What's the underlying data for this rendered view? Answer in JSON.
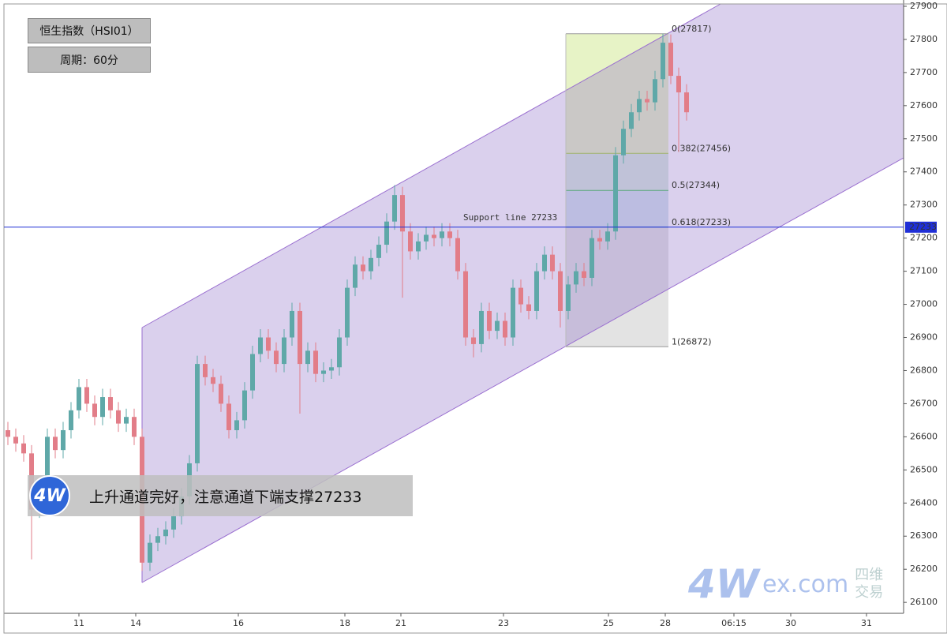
{
  "chart_data": {
    "type": "candlestick",
    "title": "恒生指数（HSI01）",
    "subtitle": "周期：60分",
    "annotation": "上升通道完好，注意通道下端支撑27233",
    "logo": "4W",
    "watermark": {
      "brand": "ex.com",
      "cn1": "四维",
      "cn2": "交易"
    },
    "up_color": "#5fa8a8",
    "down_color": "#e27d88",
    "xlim": [
      0,
      114
    ],
    "ylim": [
      26067,
      27919
    ],
    "yticks": [
      26100,
      26200,
      26300,
      26400,
      26500,
      26600,
      26700,
      26800,
      26900,
      27000,
      27100,
      27200,
      27300,
      27400,
      27500,
      27600,
      27700,
      27800,
      27900
    ],
    "xticks": [
      {
        "value": 9.5,
        "label": "11"
      },
      {
        "value": 16.7,
        "label": "14"
      },
      {
        "value": 29.7,
        "label": "16"
      },
      {
        "value": 43.2,
        "label": "18"
      },
      {
        "value": 50.3,
        "label": "21"
      },
      {
        "value": 63.3,
        "label": "23"
      },
      {
        "value": 76.6,
        "label": "25"
      },
      {
        "value": 83.8,
        "label": "28"
      },
      {
        "value": 92.5,
        "label": "06:15"
      },
      {
        "value": 99.7,
        "label": "30"
      },
      {
        "value": 109.3,
        "label": "31"
      }
    ],
    "x": [
      0,
      1,
      2,
      3,
      4,
      5,
      6,
      7,
      8,
      9,
      10,
      11,
      12,
      13,
      14,
      15,
      16,
      17,
      18,
      19,
      20,
      21,
      22,
      23,
      24,
      25,
      26,
      27,
      28,
      29,
      30,
      31,
      32,
      33,
      34,
      35,
      36,
      37,
      38,
      39,
      40,
      41,
      42,
      43,
      44,
      45,
      46,
      47,
      48,
      49,
      50,
      51,
      52,
      53,
      54,
      55,
      56,
      57,
      58,
      59,
      60,
      61,
      62,
      63,
      64,
      65,
      66,
      67,
      68,
      69,
      70,
      71,
      72,
      73,
      74,
      75,
      76,
      77,
      78,
      79,
      80,
      81,
      82,
      83,
      84,
      85,
      86
    ],
    "open": [
      26620,
      26600,
      26580,
      26550,
      26380,
      26420,
      26600,
      26560,
      26620,
      26680,
      26750,
      26700,
      26660,
      26720,
      26680,
      26640,
      26660,
      26600,
      26220,
      26280,
      26300,
      26320,
      26360,
      26420,
      26520,
      26820,
      26780,
      26760,
      26700,
      26620,
      26650,
      26740,
      26850,
      26900,
      26860,
      26820,
      26900,
      26980,
      26820,
      26860,
      26790,
      26800,
      26810,
      26900,
      27050,
      27120,
      27100,
      27140,
      27180,
      27250,
      27330,
      27220,
      27160,
      27190,
      27210,
      27200,
      27220,
      27200,
      27100,
      26900,
      26880,
      26980,
      26920,
      26950,
      26900,
      27050,
      27000,
      26980,
      27100,
      27150,
      27100,
      26980,
      27060,
      27100,
      27080,
      27200,
      27190,
      27220,
      27450,
      27530,
      27580,
      27620,
      27610,
      27680,
      27790,
      27690,
      27640
    ],
    "high": [
      26645,
      26625,
      26605,
      26575,
      26445,
      26625,
      26625,
      26645,
      26705,
      26775,
      26775,
      26725,
      26745,
      26745,
      26705,
      26685,
      26685,
      26625,
      26305,
      26325,
      26345,
      26385,
      26445,
      26545,
      26845,
      26845,
      26805,
      26785,
      26725,
      26675,
      26765,
      26875,
      26925,
      26925,
      26885,
      26925,
      27005,
      27005,
      26885,
      26885,
      26825,
      26835,
      26925,
      27075,
      27145,
      27145,
      27165,
      27205,
      27275,
      27360,
      27355,
      27245,
      27215,
      27235,
      27235,
      27245,
      27245,
      27225,
      27125,
      26925,
      27005,
      27005,
      26975,
      26975,
      27075,
      27075,
      27025,
      27125,
      27175,
      27175,
      27125,
      27085,
      27125,
      27125,
      27225,
      27225,
      27245,
      27475,
      27555,
      27605,
      27645,
      27645,
      27705,
      27817,
      27815,
      27715,
      27665
    ],
    "low": [
      26575,
      26555,
      26525,
      26230,
      26355,
      26395,
      26535,
      26535,
      26595,
      26655,
      26675,
      26635,
      26635,
      26655,
      26615,
      26615,
      26575,
      26195,
      26195,
      26255,
      26275,
      26295,
      26335,
      26395,
      26495,
      26755,
      26735,
      26675,
      26595,
      26595,
      26625,
      26715,
      26825,
      26835,
      26795,
      26795,
      26875,
      26670,
      26795,
      26765,
      26765,
      26775,
      26785,
      26875,
      27025,
      27075,
      27075,
      27115,
      27155,
      27225,
      27020,
      27135,
      27135,
      27165,
      27175,
      27175,
      27175,
      27075,
      26875,
      26840,
      26855,
      26895,
      26895,
      26875,
      26875,
      26975,
      26955,
      26955,
      27075,
      27075,
      26930,
      26955,
      27035,
      27055,
      27055,
      27165,
      27165,
      27195,
      27425,
      27505,
      27555,
      27585,
      27585,
      27655,
      27665,
      27460,
      27555
    ],
    "close": [
      26600,
      26580,
      26550,
      26380,
      26420,
      26600,
      26560,
      26620,
      26680,
      26750,
      26700,
      26660,
      26720,
      26680,
      26640,
      26660,
      26600,
      26220,
      26280,
      26300,
      26320,
      26360,
      26420,
      26520,
      26820,
      26780,
      26760,
      26700,
      26620,
      26650,
      26740,
      26850,
      26900,
      26860,
      26820,
      26900,
      26980,
      26820,
      26860,
      26790,
      26800,
      26810,
      26900,
      27050,
      27120,
      27100,
      27140,
      27180,
      27250,
      27330,
      27220,
      27160,
      27190,
      27210,
      27200,
      27220,
      27200,
      27100,
      26900,
      26880,
      26980,
      26920,
      26950,
      26900,
      27050,
      27000,
      26980,
      27100,
      27150,
      27100,
      26980,
      27060,
      27100,
      27080,
      27200,
      27190,
      27220,
      27450,
      27530,
      27580,
      27620,
      27610,
      27680,
      27790,
      27690,
      27640,
      27580
    ],
    "support": {
      "value": 27233,
      "label": "Support line 27233",
      "color": "#1f2fd6"
    },
    "fib": {
      "x": [
        71.2,
        84.2
      ],
      "levels": [
        {
          "value": 27817,
          "label": "0(27817)"
        },
        {
          "value": 27456,
          "label": "0.382(27456)"
        },
        {
          "value": 27344,
          "label": "0.5(27344)"
        },
        {
          "value": 27233,
          "label": "0.618(27233)"
        },
        {
          "value": 26872,
          "label": "1(26872)"
        }
      ]
    }
  }
}
